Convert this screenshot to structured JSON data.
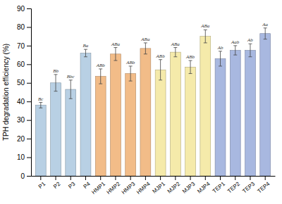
{
  "chart_data": {
    "type": "bar",
    "categories": [
      "P1",
      "P2",
      "P3",
      "P4",
      "HMP1",
      "HMP2",
      "HMP3",
      "HMP4",
      "MJP1",
      "MJP2",
      "MJP3",
      "MJP4",
      "TEP1",
      "TEP2",
      "TEP3",
      "TEP4"
    ],
    "values": [
      38.0,
      50.0,
      46.5,
      66.0,
      53.5,
      65.5,
      55.0,
      68.5,
      57.0,
      66.5,
      58.5,
      75.0,
      63.0,
      67.5,
      67.5,
      76.5
    ],
    "errors": [
      1.5,
      4.5,
      5.0,
      2.0,
      4.0,
      3.5,
      4.0,
      3.0,
      5.5,
      2.5,
      3.5,
      3.5,
      4.0,
      2.5,
      3.5,
      3.0
    ],
    "annotations": [
      "Bc",
      "Bb",
      "Bbc",
      "Ba",
      "ABb",
      "ABa",
      "ABb",
      "ABa",
      "ABb",
      "ABa",
      "ABb",
      "ABa",
      "Ab",
      "Aab",
      "Ab",
      "Aa"
    ],
    "colors": [
      "#b8d0e4",
      "#b8d0e4",
      "#b8d0e4",
      "#b8d0e4",
      "#f2bc88",
      "#f2bc88",
      "#f2bc88",
      "#f2bc88",
      "#f5eaaa",
      "#f5eaaa",
      "#f5eaaa",
      "#f5eaaa",
      "#a8b8e0",
      "#a8b8e0",
      "#a8b8e0",
      "#a8b8e0"
    ],
    "ylabel": "TPH degradation efficiency (%)",
    "ylim": [
      0,
      90
    ],
    "yticks": [
      0,
      10,
      20,
      30,
      40,
      50,
      60,
      70,
      80,
      90
    ],
    "grid": false
  }
}
